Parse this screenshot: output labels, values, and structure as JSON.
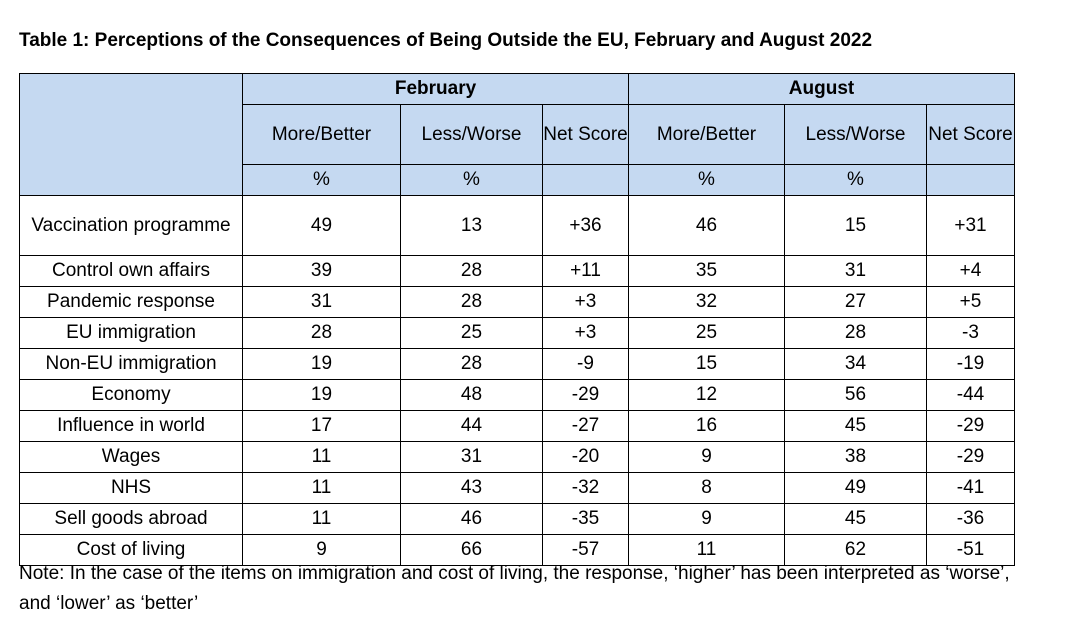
{
  "title": "Table 1: Perceptions of the Consequences of Being Outside the EU, February and August 2022",
  "periods": [
    "February",
    "August"
  ],
  "columns": [
    "More/Better",
    "Less/Worse",
    "Net Score"
  ],
  "percent_symbol": "%",
  "rows": [
    {
      "label": "Vaccination programme",
      "feb": [
        "49",
        "13",
        "+36"
      ],
      "aug": [
        "46",
        "15",
        "+31"
      ]
    },
    {
      "label": "Control own affairs",
      "feb": [
        "39",
        "28",
        "+11"
      ],
      "aug": [
        "35",
        "31",
        "+4"
      ]
    },
    {
      "label": "Pandemic response",
      "feb": [
        "31",
        "28",
        "+3"
      ],
      "aug": [
        "32",
        "27",
        "+5"
      ]
    },
    {
      "label": "EU immigration",
      "feb": [
        "28",
        "25",
        "+3"
      ],
      "aug": [
        "25",
        "28",
        "-3"
      ]
    },
    {
      "label": "Non-EU immigration",
      "feb": [
        "19",
        "28",
        "-9"
      ],
      "aug": [
        "15",
        "34",
        "-19"
      ]
    },
    {
      "label": "Economy",
      "feb": [
        "19",
        "48",
        "-29"
      ],
      "aug": [
        "12",
        "56",
        "-44"
      ]
    },
    {
      "label": "Influence in world",
      "feb": [
        "17",
        "44",
        "-27"
      ],
      "aug": [
        "16",
        "45",
        "-29"
      ]
    },
    {
      "label": "Wages",
      "feb": [
        "11",
        "31",
        "-20"
      ],
      "aug": [
        "9",
        "38",
        "-29"
      ]
    },
    {
      "label": "NHS",
      "feb": [
        "11",
        "43",
        "-32"
      ],
      "aug": [
        "8",
        "49",
        "-41"
      ]
    },
    {
      "label": "Sell goods abroad",
      "feb": [
        "11",
        "46",
        "-35"
      ],
      "aug": [
        "9",
        "45",
        "-36"
      ]
    },
    {
      "label": "Cost of living",
      "feb": [
        "9",
        "66",
        "-57"
      ],
      "aug": [
        "11",
        "62",
        "-51"
      ]
    }
  ],
  "note": "Note: In the case of the items on immigration and cost of living, the response, ‘higher’ has been interpreted as ‘worse’, and ‘lower’ as ‘better’"
}
